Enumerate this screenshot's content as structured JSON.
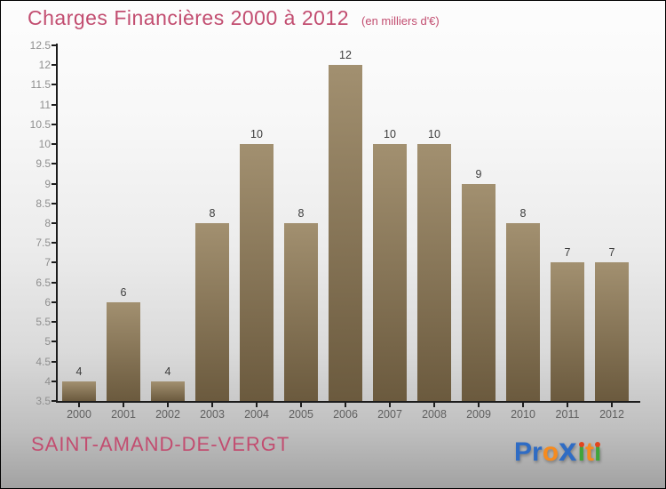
{
  "title": "Charges Financières 2000 à 2012",
  "subtitle": "(en milliers d'€)",
  "footer": {
    "commune": "SAINT-AMAND-DE-VERGT"
  },
  "logo": {
    "name": "Proxiti",
    "letters": [
      {
        "ch": "P",
        "color": "#2f6cc4"
      },
      {
        "ch": "r",
        "color": "#2f6cc4"
      },
      {
        "ch": "o",
        "color": "#f68b1f"
      },
      {
        "ch": "x",
        "color": "#2f6cc4",
        "big": true
      },
      {
        "ch": "i",
        "color": "#3fa53a",
        "dot": "#e2451c"
      },
      {
        "ch": "t",
        "color": "#f68b1f"
      },
      {
        "ch": "i",
        "color": "#3fa53a",
        "dot": "#e2451c"
      }
    ]
  },
  "colors": {
    "title_pink": "#c24d70",
    "bar_top": "#a29070",
    "bar_bottom": "#6b5a3e",
    "axis": "#1c1c1c",
    "ytick_label": "#8f8f8f",
    "xtick_label": "#5f5f5f",
    "value_label": "#3c3c3c",
    "background_top": "#fdfdfd",
    "background_bottom": "#a2a2a2"
  },
  "chart_data": {
    "type": "bar",
    "title": "Charges Financières 2000 à 2012",
    "subtitle": "(en milliers d'€)",
    "categories": [
      "2000",
      "2001",
      "2002",
      "2003",
      "2004",
      "2005",
      "2006",
      "2007",
      "2008",
      "2009",
      "2010",
      "2011",
      "2012"
    ],
    "values": [
      4,
      6,
      4,
      8,
      10,
      8,
      12,
      10,
      10,
      9,
      8,
      7,
      7
    ],
    "xlabel": "",
    "ylabel": "",
    "ylim": [
      3.5,
      12.5
    ],
    "ytick_step": 0.5,
    "grid": false,
    "legend": false,
    "bar_value_labels": true
  }
}
